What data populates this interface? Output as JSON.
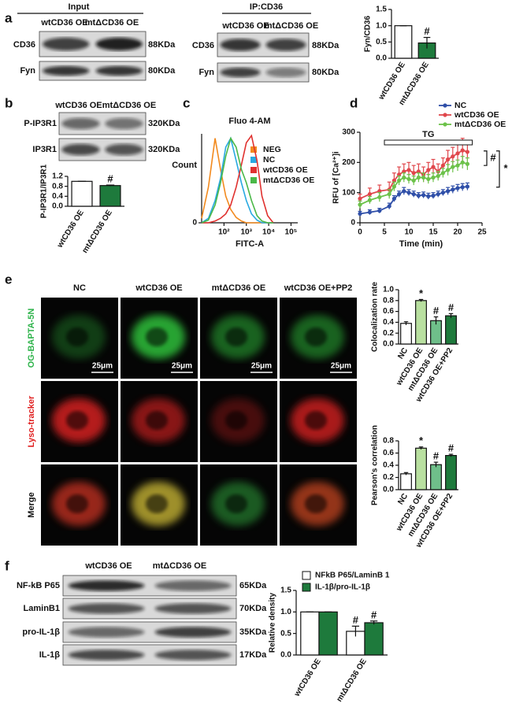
{
  "panels": {
    "letters": [
      "a",
      "b",
      "c",
      "d",
      "e",
      "f"
    ],
    "a": {
      "headers": [
        "Input",
        "IP:CD36"
      ],
      "lanes": [
        "wtCD36 OE",
        "mtΔCD36 OE",
        "wtCD36 OE",
        "mtΔCD36 OE"
      ],
      "rows": [
        "CD36",
        "Fyn",
        "CD36",
        "Fyn"
      ],
      "sizes": [
        "88KDa",
        "80KDa",
        "88KDa",
        "80KDa"
      ]
    },
    "b": {
      "lanes": [
        "wtCD36 OE",
        "mtΔCD36 OE"
      ],
      "rows": [
        "P-IP3R1",
        "IP3R1"
      ],
      "sizes": [
        "320KDa",
        "320KDa"
      ]
    },
    "e": {
      "columns": [
        "NC",
        "wtCD36 OE",
        "mtΔCD36 OE",
        "wtCD36 OE+PP2"
      ],
      "rows": [
        "OG-BAPTA-5N",
        "Lyso-tracker",
        "Merge"
      ],
      "scale_bars": [
        "25μm",
        "25μm",
        "25μm",
        "25μm"
      ]
    },
    "f": {
      "lanes": [
        "wtCD36 OE",
        "mtΔCD36 OE"
      ],
      "rows": [
        "NF-kB P65",
        "LaminB1",
        "pro-IL-1β",
        "IL-1β"
      ],
      "sizes": [
        "65KDa",
        "70KDa",
        "35KDa",
        "17KDa"
      ]
    }
  },
  "chart_data": [
    {
      "type": "bar",
      "ylabel": "Fyn/CD36",
      "categories": [
        "wtCD36 OE",
        "mtΔCD36 OE"
      ],
      "values": [
        1.0,
        0.47
      ],
      "errors": [
        0,
        0.17
      ],
      "colors": [
        "#ffffff",
        "#1e7a3c"
      ],
      "annotations": [
        null,
        "#"
      ],
      "ylim": [
        0,
        1.5
      ],
      "yticks": [
        {
          "value": 0,
          "label": "0.0"
        },
        0.5,
        {
          "value": 1,
          "label": "1.0"
        },
        1.5
      ]
    },
    {
      "type": "bar",
      "ylabel": "P-IP3R1/IP3R1",
      "categories": [
        "wtCD36 OE",
        "mtΔCD36 OE"
      ],
      "values": [
        1.0,
        0.83
      ],
      "errors": [
        0,
        0.02
      ],
      "colors": [
        "#ffffff",
        "#1e7a3c"
      ],
      "annotations": [
        null,
        "#"
      ],
      "ylim": [
        0,
        1.2
      ],
      "yticks": [
        {
          "value": 0,
          "label": "0.0"
        },
        0.4,
        0.8,
        1.2
      ]
    },
    {
      "type": "line",
      "title": "Fluo 4-AM",
      "xlabel": "FITC-A",
      "ylabel": "Count",
      "xscale": "log",
      "legend": "upper right",
      "x": [
        10,
        20,
        40,
        70,
        120,
        200,
        350,
        600,
        1000,
        1700,
        3000,
        5000,
        9000,
        16000
      ],
      "series": [
        {
          "name": "NEG",
          "color": "#f28a1e",
          "values": [
            5,
            40,
            95,
            60,
            30,
            15,
            6,
            2,
            0,
            0,
            0,
            0,
            0,
            0
          ]
        },
        {
          "name": "NC",
          "color": "#29a9e1",
          "values": [
            0,
            5,
            25,
            50,
            85,
            95,
            70,
            45,
            25,
            10,
            3,
            0,
            0,
            0
          ]
        },
        {
          "name": "wtCD36 OE",
          "color": "#e0312f",
          "values": [
            0,
            0,
            2,
            5,
            10,
            20,
            40,
            65,
            90,
            98,
            70,
            30,
            8,
            0
          ]
        },
        {
          "name": "mtΔCD36 OE",
          "color": "#4bb848",
          "values": [
            0,
            3,
            20,
            45,
            75,
            95,
            85,
            60,
            45,
            25,
            8,
            2,
            0,
            0
          ]
        }
      ],
      "xlim": [
        10,
        200000
      ],
      "xticks": [
        {
          "value": 100,
          "label": "10²"
        },
        {
          "value": 1000,
          "label": "10³"
        },
        {
          "value": 10000,
          "label": "10⁴"
        },
        {
          "value": 100000,
          "label": "10⁵"
        }
      ],
      "ylim": [
        0,
        100
      ],
      "yticks": [
        0
      ]
    },
    {
      "type": "line",
      "xlabel": "Time (min)",
      "ylabel": "RFU of [Ca²⁺]i",
      "markers": true,
      "legend": "upper right",
      "x": [
        0,
        2,
        4,
        6,
        7,
        8,
        9,
        10,
        11,
        12,
        13,
        14,
        15,
        16,
        17,
        18,
        19,
        20,
        21,
        22
      ],
      "series": [
        {
          "name": "NC",
          "color": "#2f4fa8",
          "values": [
            30,
            35,
            40,
            55,
            80,
            95,
            105,
            100,
            95,
            90,
            92,
            88,
            90,
            95,
            100,
            105,
            110,
            115,
            118,
            120
          ],
          "errors": [
            8,
            8,
            8,
            10,
            10,
            10,
            12,
            10,
            10,
            10,
            10,
            10,
            10,
            10,
            10,
            12,
            12,
            12,
            12,
            12
          ]
        },
        {
          "name": "wtCD36 OE",
          "color": "#e0474c",
          "values": [
            80,
            95,
            105,
            110,
            140,
            160,
            170,
            175,
            165,
            170,
            160,
            175,
            185,
            170,
            190,
            210,
            220,
            230,
            240,
            235
          ],
          "errors": [
            15,
            20,
            20,
            25,
            25,
            25,
            25,
            25,
            25,
            25,
            25,
            25,
            25,
            25,
            25,
            30,
            30,
            35,
            40,
            30
          ]
        },
        {
          "name": "mtΔCD36 OE",
          "color": "#6cc24a",
          "values": [
            60,
            75,
            85,
            95,
            120,
            140,
            150,
            145,
            140,
            150,
            150,
            145,
            150,
            155,
            165,
            175,
            185,
            190,
            200,
            195
          ],
          "errors": [
            12,
            12,
            15,
            15,
            15,
            15,
            15,
            15,
            15,
            15,
            15,
            15,
            15,
            15,
            15,
            18,
            18,
            18,
            20,
            20
          ]
        }
      ],
      "annotations": [
        {
          "text": "TG",
          "x": [
            5,
            23
          ]
        },
        {
          "text": "#"
        },
        {
          "text": "*"
        }
      ],
      "xlim": [
        0,
        25
      ],
      "xticks": [
        0,
        5,
        10,
        15,
        20,
        25
      ],
      "ylim": [
        0,
        300
      ],
      "yticks": [
        0,
        100,
        200,
        300
      ]
    },
    {
      "type": "bar",
      "ylabel": "Colocalization rate",
      "categories": [
        "NC",
        "wtCD36 OE",
        "mtΔCD36 OE",
        "wtCD36 OE+PP2"
      ],
      "values": [
        0.38,
        0.8,
        0.43,
        0.52
      ],
      "errors": [
        0.03,
        0.02,
        0.07,
        0.04
      ],
      "colors": [
        "#ffffff",
        "#b9e0a0",
        "#6fbf8a",
        "#1e7a3c"
      ],
      "annotations": [
        null,
        "*",
        "#",
        "#"
      ],
      "ylim": [
        0,
        1.0
      ],
      "yticks": [
        {
          "value": 0,
          "label": "0.0"
        },
        0.2,
        0.4,
        0.6,
        0.8,
        {
          "value": 1,
          "label": "1.0"
        }
      ]
    },
    {
      "type": "bar",
      "ylabel": "Pearson's correlation",
      "categories": [
        "NC",
        "wtCD36 OE",
        "mtΔCD36 OE",
        "wtCD36 OE+PP2"
      ],
      "values": [
        0.26,
        0.68,
        0.41,
        0.56
      ],
      "errors": [
        0.02,
        0.02,
        0.04,
        0.02
      ],
      "colors": [
        "#ffffff",
        "#b9e0a0",
        "#6fbf8a",
        "#1e7a3c"
      ],
      "annotations": [
        null,
        "*",
        "#",
        "#"
      ],
      "ylim": [
        0,
        0.8
      ],
      "yticks": [
        {
          "value": 0,
          "label": "0.0"
        },
        0.2,
        0.4,
        0.6,
        0.8
      ]
    },
    {
      "type": "bar",
      "ylabel": "Relative density",
      "categories": [
        "wtCD36 OE",
        "mtΔCD36 OE"
      ],
      "legend": "upper left",
      "series": [
        {
          "name": "NFkB P65/LaminB 1",
          "color": "#ffffff",
          "values": [
            1.0,
            0.55
          ],
          "errors": [
            0,
            0.12
          ],
          "annotations": [
            null,
            "#"
          ]
        },
        {
          "name": "IL-1β/pro-IL-1β",
          "color": "#1e7a3c",
          "values": [
            1.0,
            0.75
          ],
          "errors": [
            0,
            0.04
          ],
          "annotations": [
            null,
            "#"
          ]
        }
      ],
      "ylim": [
        0,
        1.5
      ],
      "yticks": [
        {
          "value": 0,
          "label": "0.0"
        },
        0.5,
        {
          "value": 1,
          "label": "1.0"
        },
        1.5
      ]
    }
  ]
}
